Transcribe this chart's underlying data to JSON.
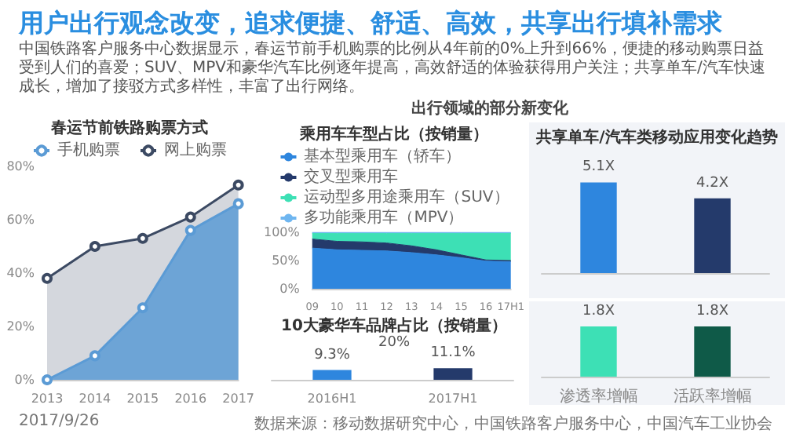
{
  "chart_data": [
    {
      "type": "other",
      "title": "用户出行观念改变，追求便捷、舒适、高效，共享出行填补需求",
      "subtitle": "中国铁路客户服务中心数据显示，春运节前手机购票的比例从4年前的0%上升到66%，便捷的移动购票日益受到人们的喜爱；SUV、MPV和豪华汽车比例逐年提高，高效舒适的体验获得用户关注；共享单车/汽车快速成长，增加了接驳方式多样性，丰富了出行网络。",
      "annotations": [
        "出行领域的部分新变化",
        "数据来源：移动数据研究中心，中国铁路客户服务中心，中国汽车工业协会",
        "2017/9/26"
      ]
    },
    {
      "type": "area",
      "title": "春运节前铁路购票方式",
      "categories": [
        "2013",
        "2014",
        "2015",
        "2016",
        "2017"
      ],
      "series": [
        {
          "name": "手机购票",
          "color": "#5b9bd5",
          "values": [
            0,
            9,
            27,
            56,
            66
          ]
        },
        {
          "name": "网上购票",
          "color": "#3c4a63",
          "values": [
            38,
            50,
            53,
            61,
            73
          ]
        }
      ],
      "ylim": [
        0,
        80
      ],
      "yticks": [
        {
          "value": 0,
          "label": "0%"
        },
        {
          "value": 20,
          "label": "20%"
        },
        {
          "value": 40,
          "label": "40%"
        },
        {
          "value": 60,
          "label": "60%"
        },
        {
          "value": 80,
          "label": "80%"
        }
      ],
      "legend": "top",
      "marker": "circle"
    },
    {
      "type": "area",
      "title": "乘用车车型占比（按销量）",
      "stacked": true,
      "categories": [
        "09",
        "10",
        "11",
        "12",
        "13",
        "14",
        "15",
        "16",
        "17H1"
      ],
      "series": [
        {
          "name": "基本型乘用车（轿车）",
          "color": "#2e86de",
          "values": [
            72,
            69,
            68,
            67,
            64,
            60,
            55,
            49,
            48
          ]
        },
        {
          "name": "交叉型乘用车",
          "color": "#243a6b",
          "values": [
            16,
            15,
            15,
            14,
            12,
            9,
            5,
            2,
            2
          ]
        },
        {
          "name": "运动型多用途乘用车（SUV）",
          "color": "#3de0b5",
          "values": [
            10,
            14,
            15,
            17,
            22,
            29,
            38,
            47,
            48
          ]
        },
        {
          "name": "多功能乘用车（MPV）",
          "color": "#6fb6f0",
          "values": [
            2,
            2,
            2,
            2,
            2,
            2,
            2,
            2,
            2
          ]
        }
      ],
      "ylim": [
        0,
        100
      ],
      "yticks": [
        {
          "value": 0,
          "label": "0%"
        },
        {
          "value": 50,
          "label": "50%"
        },
        {
          "value": 100,
          "label": "100%"
        }
      ],
      "legend": "top"
    },
    {
      "type": "bar",
      "title": "10大豪华车品牌占比（按销量）",
      "categories": [
        "2016H1",
        "2017H1"
      ],
      "values": [
        9.3,
        11.1
      ],
      "colors": [
        "#2e86de",
        "#243a6b"
      ],
      "value_labels": [
        "9.3%",
        "11.1%"
      ],
      "annotations": [
        "20%"
      ]
    },
    {
      "type": "bar",
      "title": "共享单车/汽车类移动应用变化趋势",
      "categories": [
        null,
        null
      ],
      "values": [
        5.1,
        4.2
      ],
      "colors": [
        "#2e86de",
        "#243a6b"
      ],
      "value_labels": [
        "5.1X",
        "4.2X"
      ]
    },
    {
      "type": "bar",
      "categories": [
        "渗透率增幅",
        "活跃率增幅"
      ],
      "values": [
        1.8,
        1.8
      ],
      "colors": [
        "#3de0b5",
        "#0f5a48"
      ],
      "value_labels": [
        "1.8X",
        "1.8X"
      ]
    }
  ]
}
